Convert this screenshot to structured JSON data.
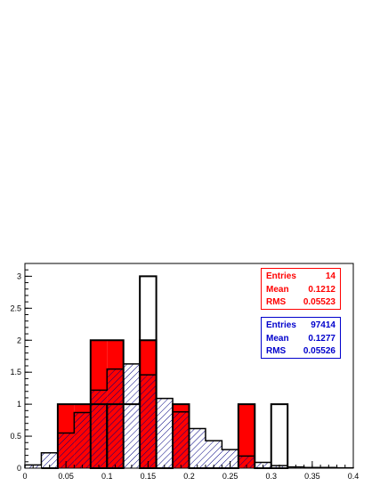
{
  "chart_data": {
    "type": "bar",
    "title": "",
    "xlabel": "",
    "ylabel": "",
    "xlim": [
      0,
      0.4
    ],
    "ylim": [
      0,
      3.2
    ],
    "bin_width": 0.02,
    "x_ticks": [
      "0",
      "0.05",
      "0.1",
      "0.15",
      "0.2",
      "0.25",
      "0.3",
      "0.35",
      "0.4"
    ],
    "x_tick_values": [
      0,
      0.05,
      0.1,
      0.15,
      0.2,
      0.25,
      0.3,
      0.35,
      0.4
    ],
    "y_ticks": [
      "0",
      "0.5",
      "1",
      "1.5",
      "2",
      "2.5",
      "3"
    ],
    "y_tick_values": [
      0,
      0.5,
      1,
      1.5,
      2,
      2.5,
      3
    ],
    "series": [
      {
        "style": "red-filled",
        "color": "#ff0000",
        "bin_lows": [
          0.02,
          0.04,
          0.06,
          0.08,
          0.1,
          0.12,
          0.14,
          0.16,
          0.18,
          0.2,
          0.22,
          0.24,
          0.26,
          0.28
        ],
        "values": [
          0,
          1,
          1,
          2,
          2,
          1,
          2,
          0,
          1,
          0,
          0,
          0,
          1,
          0
        ]
      },
      {
        "style": "blue-hatched",
        "color": "#000080",
        "bin_lows": [
          0.0,
          0.02,
          0.04,
          0.06,
          0.08,
          0.1,
          0.12,
          0.14,
          0.16,
          0.18,
          0.2,
          0.22,
          0.24,
          0.26,
          0.28,
          0.3,
          0.32,
          0.34,
          0.36,
          0.38
        ],
        "values": [
          0.05,
          0.24,
          0.55,
          0.87,
          1.22,
          1.55,
          1.63,
          1.46,
          1.09,
          0.88,
          0.62,
          0.43,
          0.29,
          0.19,
          0.09,
          0.04,
          0.02,
          0.01,
          0.01,
          0.005
        ]
      },
      {
        "style": "black-outline",
        "color": "#000000",
        "bin_lows": [
          0.02,
          0.04,
          0.06,
          0.08,
          0.1,
          0.12,
          0.14,
          0.16,
          0.18,
          0.2,
          0.22,
          0.24,
          0.26,
          0.28,
          0.3
        ],
        "values": [
          0,
          0,
          0,
          1,
          1,
          0,
          3,
          0,
          0,
          0,
          0,
          0,
          0,
          0,
          1
        ]
      }
    ]
  },
  "stats_red": {
    "color": "#ff0000",
    "rows": [
      {
        "label": "Entries",
        "value": "14"
      },
      {
        "label": "Mean",
        "value": "0.1212"
      },
      {
        "label": "RMS",
        "value": "0.05523"
      }
    ]
  },
  "stats_blue": {
    "color": "#0000cc",
    "rows": [
      {
        "label": "Entries",
        "value": "97414"
      },
      {
        "label": "Mean",
        "value": "0.1277"
      },
      {
        "label": "RMS",
        "value": "0.05526"
      }
    ]
  }
}
